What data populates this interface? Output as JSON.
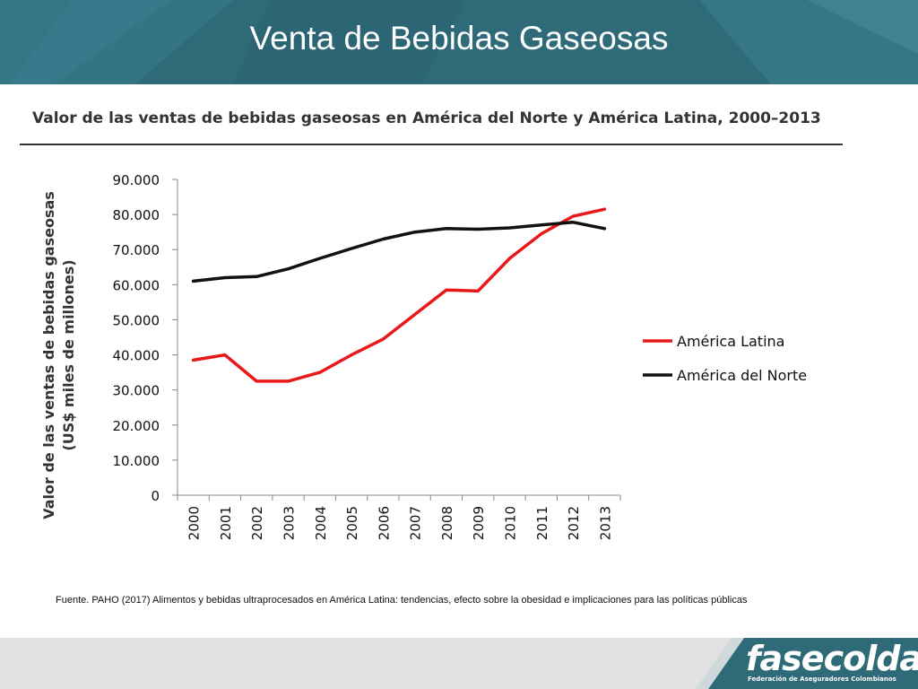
{
  "slide": {
    "title": "Venta de Bebidas Gaseosas",
    "source": "Fuente. PAHO (2017) Alimentos y bebidas ultraprocesados en América Latina: tendencias, efecto sobre la obesidad e implicaciones para las políticas públicas"
  },
  "logo": {
    "text": "fasecolda",
    "subtitle": "Federación de Aseguradores Colombianos"
  },
  "colors": {
    "header": "#2e6a78",
    "america_latina": "#e8191b",
    "america_del_norte": "#111111",
    "footer": "#e1e1e1"
  },
  "chart_data": {
    "type": "line",
    "title": "Valor de las ventas de bebidas gaseosas en América del Norte y América Latina, 2000–2013",
    "ylabel": "Valor de las ventas de bebidas gaseosas\n(US$ miles de millones)",
    "xlabel": "",
    "x": [
      "2000",
      "2001",
      "2002",
      "2003",
      "2004",
      "2005",
      "2006",
      "2007",
      "2008",
      "2009",
      "2010",
      "2011",
      "2012",
      "2013"
    ],
    "yticks": [
      "0",
      "10.000",
      "20.000",
      "30.000",
      "40.000",
      "50.000",
      "60.000",
      "70.000",
      "80.000",
      "90.000"
    ],
    "ylim": [
      0,
      90000
    ],
    "legend_position": "right",
    "series": [
      {
        "name": "América Latina",
        "color": "#e8191b",
        "values": [
          38500,
          40000,
          32500,
          32500,
          35000,
          40000,
          44500,
          51500,
          58500,
          58200,
          67500,
          74500,
          79500,
          81500
        ]
      },
      {
        "name": "América del Norte",
        "color": "#111111",
        "values": [
          61000,
          62000,
          62300,
          64500,
          67500,
          70300,
          73000,
          75000,
          76000,
          75800,
          76200,
          77000,
          77800,
          76000
        ]
      }
    ]
  }
}
